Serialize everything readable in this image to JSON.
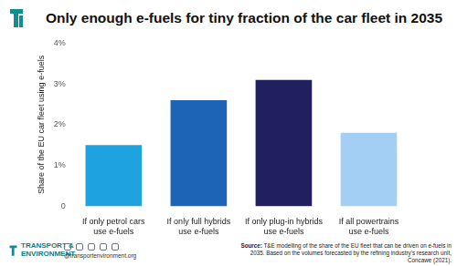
{
  "chart_data": {
    "type": "bar",
    "title": "Only enough e-fuels for tiny fraction of the car fleet in 2035",
    "y_label": "Share of the EU car fleet using e-fuels",
    "categories": [
      "If only petrol cars use e-fuels",
      "If only full hybrids use e-fuels",
      "If only plug-in hybrids use e-fuels",
      "If all powertrains use e-fuels"
    ],
    "values": [
      1.5,
      2.6,
      3.1,
      1.8
    ],
    "colors": [
      "#1fa3e0",
      "#1d63b6",
      "#221f5e",
      "#a3cff4"
    ],
    "ylim": [
      0,
      4
    ],
    "yticks": [
      0,
      {
        "value": 1,
        "label": "1%"
      },
      {
        "value": 2,
        "label": "2%"
      },
      {
        "value": 3,
        "label": "3%"
      },
      {
        "value": 4,
        "label": "4%"
      }
    ],
    "grid": false,
    "annotations": {
      "logo": "TRANSPORT &\nENVIRONMENT",
      "handle": "@transportenvironment.org",
      "source": "Source: T&E modelling of the share of the EU fleet that can be driven on e-fuels in 2035. Based on the volumes forecasted by the refining industry's research unit, Concawe (2021)."
    }
  }
}
